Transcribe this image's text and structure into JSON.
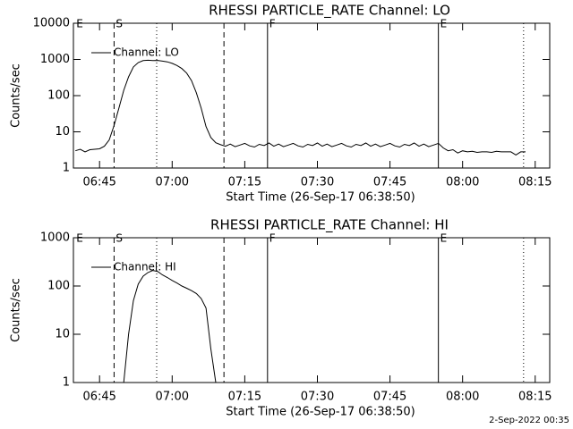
{
  "chart_data": [
    {
      "type": "line",
      "title": "RHESSI PARTICLE_RATE Channel: LO",
      "xlabel": "Start Time (26-Sep-17 06:38:50)",
      "ylabel": "Counts/sec",
      "log_y": true,
      "xlim": [
        "06:39:36",
        "08:18:00"
      ],
      "ylim": [
        1,
        10000
      ],
      "xticks": [
        "06:45",
        "07:00",
        "07:15",
        "07:30",
        "07:45",
        "08:00",
        "08:15"
      ],
      "yticks": [
        1,
        10,
        100,
        1000,
        10000
      ],
      "markers": [
        {
          "x": "06:39:50",
          "style": "none",
          "label": "E"
        },
        {
          "x": "06:48:00",
          "style": "dashed",
          "label": "S"
        },
        {
          "x": "06:56:48",
          "style": "dotted"
        },
        {
          "x": "07:10:42",
          "style": "dashed"
        },
        {
          "x": "07:19:42",
          "style": "solid",
          "label": "F"
        },
        {
          "x": "07:55:00",
          "style": "solid",
          "label": "E"
        },
        {
          "x": "08:12:36",
          "style": "dotted"
        }
      ],
      "x": [
        "06:40",
        "06:41",
        "06:42",
        "06:43",
        "06:44",
        "06:45",
        "06:46",
        "06:47",
        "06:48",
        "06:49",
        "06:50",
        "06:51",
        "06:52",
        "06:53",
        "06:54",
        "06:55",
        "06:56",
        "06:57",
        "06:58",
        "06:59",
        "07:00",
        "07:01",
        "07:02",
        "07:03",
        "07:04",
        "07:05",
        "07:06",
        "07:07",
        "07:08",
        "07:09",
        "07:10",
        "07:11",
        "07:12",
        "07:13",
        "07:14",
        "07:15",
        "07:16",
        "07:17",
        "07:18",
        "07:19",
        "07:20",
        "07:21",
        "07:22",
        "07:23",
        "07:24",
        "07:25",
        "07:26",
        "07:27",
        "07:28",
        "07:29",
        "07:30",
        "07:31",
        "07:32",
        "07:33",
        "07:34",
        "07:35",
        "07:36",
        "07:37",
        "07:38",
        "07:39",
        "07:40",
        "07:41",
        "07:42",
        "07:43",
        "07:44",
        "07:45",
        "07:46",
        "07:47",
        "07:48",
        "07:49",
        "07:50",
        "07:51",
        "07:52",
        "07:53",
        "07:54",
        "07:55",
        "07:56",
        "07:57",
        "07:58",
        "07:59",
        "08:00",
        "08:01",
        "08:02",
        "08:03",
        "08:04",
        "08:05",
        "08:06",
        "08:07",
        "08:08",
        "08:09",
        "08:10",
        "08:11",
        "08:12",
        "08:13"
      ],
      "series": [
        {
          "name": "Channel: LO",
          "color": "#000000",
          "values": [
            3.0,
            3.3,
            2.8,
            3.2,
            3.3,
            3.4,
            4.0,
            6,
            15,
            45,
            140,
            330,
            620,
            820,
            930,
            950,
            930,
            940,
            900,
            860,
            780,
            680,
            560,
            420,
            260,
            120,
            45,
            14,
            7,
            5,
            4.4,
            4.0,
            4.6,
            3.9,
            4.3,
            4.8,
            4.1,
            3.8,
            4.5,
            4.2,
            4.9,
            4.0,
            4.6,
            3.9,
            4.3,
            4.8,
            4.1,
            3.8,
            4.5,
            4.2,
            4.9,
            4.0,
            4.6,
            3.9,
            4.3,
            4.8,
            4.1,
            3.8,
            4.5,
            4.2,
            4.9,
            4.0,
            4.6,
            3.9,
            4.3,
            4.8,
            4.1,
            3.8,
            4.5,
            4.2,
            4.9,
            4.0,
            4.6,
            3.9,
            4.3,
            4.8,
            3.6,
            3.0,
            3.2,
            2.6,
            3.0,
            2.8,
            2.9,
            2.7,
            2.8,
            2.8,
            2.7,
            2.9,
            2.8,
            2.8,
            2.8,
            2.3,
            2.8,
            2.8
          ]
        }
      ]
    },
    {
      "type": "line",
      "title": "RHESSI PARTICLE_RATE Channel: HI",
      "xlabel": "Start Time (26-Sep-17 06:38:50)",
      "ylabel": "Counts/sec",
      "log_y": true,
      "xlim": [
        "06:39:36",
        "08:18:00"
      ],
      "ylim": [
        1,
        1000
      ],
      "xticks": [
        "06:45",
        "07:00",
        "07:15",
        "07:30",
        "07:45",
        "08:00",
        "08:15"
      ],
      "yticks": [
        1,
        10,
        100,
        1000
      ],
      "markers": [
        {
          "x": "06:39:50",
          "style": "none",
          "label": "E"
        },
        {
          "x": "06:48:00",
          "style": "dashed",
          "label": "S"
        },
        {
          "x": "06:56:48",
          "style": "dotted"
        },
        {
          "x": "07:10:42",
          "style": "dashed"
        },
        {
          "x": "07:19:42",
          "style": "solid",
          "label": "F"
        },
        {
          "x": "07:55:00",
          "style": "solid",
          "label": "E"
        },
        {
          "x": "08:12:36",
          "style": "dotted"
        }
      ],
      "x": [
        "06:50",
        "06:51",
        "06:52",
        "06:53",
        "06:54",
        "06:55",
        "06:56",
        "06:57",
        "06:58",
        "06:59",
        "07:00",
        "07:01",
        "07:02",
        "07:03",
        "07:04",
        "07:05",
        "07:06",
        "07:07",
        "07:08",
        "07:09"
      ],
      "series": [
        {
          "name": "Channel: HI",
          "color": "#000000",
          "values": [
            1,
            10,
            50,
            110,
            160,
            190,
            210,
            200,
            170,
            150,
            130,
            115,
            100,
            90,
            80,
            70,
            55,
            35,
            5,
            1
          ]
        }
      ]
    }
  ],
  "footer": "2-Sep-2022 00:35"
}
